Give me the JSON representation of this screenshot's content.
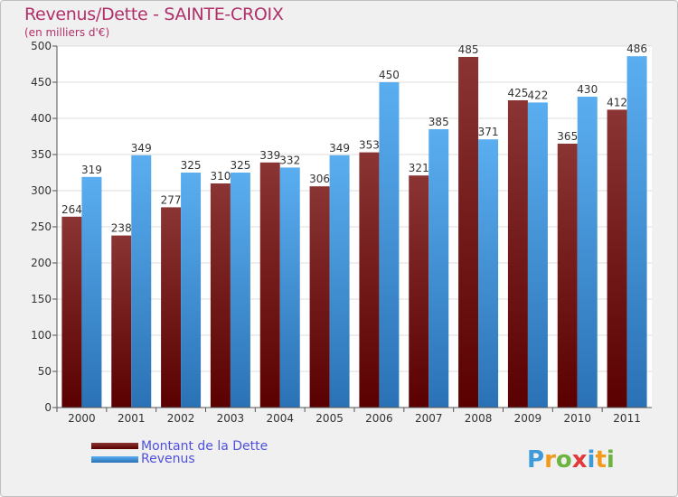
{
  "title": "Revenus/Dette - SAINTE-CROIX",
  "unit_label": "(en milliers d'€)",
  "logo_text": "Proxiti",
  "legend": [
    {
      "label": "Montant de la Dette",
      "color": "#6a0f14"
    },
    {
      "label": "Revenus",
      "color": "#3c95dc"
    }
  ],
  "chart_data": {
    "type": "bar",
    "title": "Revenus/Dette - SAINTE-CROIX",
    "ylabel": "(en milliers d'€)",
    "xlabel": "",
    "ylim": [
      0,
      500
    ],
    "yticks": [
      0,
      50,
      100,
      150,
      200,
      250,
      300,
      350,
      400,
      450,
      500
    ],
    "grid": true,
    "legend_position": "bottom-left",
    "categories": [
      "2000",
      "2001",
      "2002",
      "2003",
      "2004",
      "2005",
      "2006",
      "2007",
      "2008",
      "2009",
      "2010",
      "2011"
    ],
    "series": [
      {
        "name": "Montant de la Dette",
        "color": "#6a0f14",
        "values": [
          264,
          238,
          277,
          310,
          339,
          306,
          353,
          321,
          485,
          425,
          365,
          412
        ]
      },
      {
        "name": "Revenus",
        "color": "#3c95dc",
        "values": [
          319,
          349,
          325,
          325,
          332,
          349,
          450,
          385,
          371,
          422,
          430,
          486
        ]
      }
    ]
  }
}
